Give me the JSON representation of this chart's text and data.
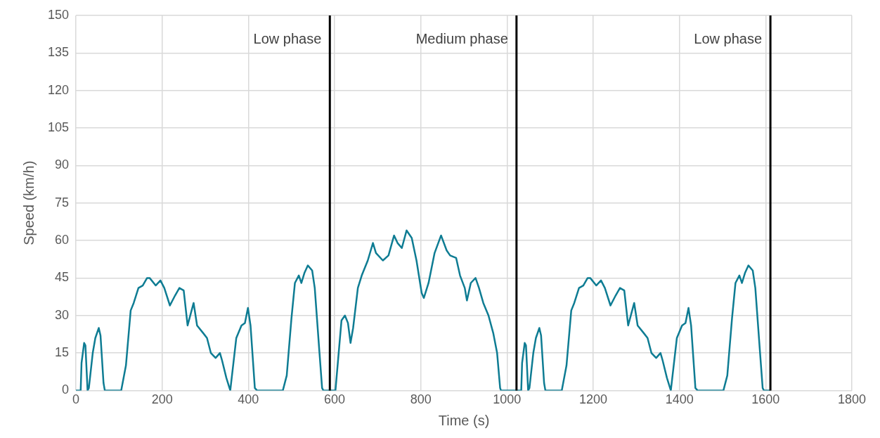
{
  "chart_data": {
    "type": "line",
    "xlabel": "Time (s)",
    "ylabel": "Speed (km/h)",
    "xlim": [
      0,
      1800
    ],
    "xticks": [
      0,
      200,
      400,
      600,
      800,
      1000,
      1200,
      1400,
      1600,
      1800
    ],
    "ylim": [
      0,
      150
    ],
    "yticks": [
      0,
      15,
      30,
      45,
      60,
      75,
      90,
      105,
      120,
      135,
      150
    ],
    "grid": true,
    "legend": false,
    "marker": "none",
    "line_style": "solid",
    "series": [
      {
        "color": "#0e7c93",
        "x": [
          0,
          11,
          13,
          19,
          22,
          27,
          30,
          39,
          45,
          53,
          57,
          64,
          67,
          105,
          116,
          127,
          134,
          145,
          155,
          165,
          171,
          185,
          196,
          205,
          218,
          230,
          240,
          250,
          259,
          273,
          281,
          295,
          304,
          313,
          324,
          334,
          339,
          349,
          358,
          372,
          384,
          392,
          399,
          405,
          415,
          420,
          480,
          489,
          500,
          508,
          517,
          523,
          530,
          538,
          548,
          554,
          565,
          571,
          574,
          589,
          602,
          607,
          616,
          624,
          631,
          637,
          643,
          654,
          663,
          677,
          689,
          696,
          712,
          725,
          738,
          746,
          756,
          767,
          779,
          790,
          802,
          807,
          818,
          832,
          847,
          860,
          868,
          882,
          891,
          902,
          907,
          916,
          927,
          935,
          945,
          957,
          968,
          977,
          984,
          986,
          1022,
          1033,
          1035,
          1041,
          1044,
          1049,
          1052,
          1061,
          1067,
          1075,
          1079,
          1086,
          1089,
          1127,
          1138,
          1149,
          1156,
          1167,
          1177,
          1187,
          1193,
          1207,
          1218,
          1227,
          1240,
          1252,
          1262,
          1272,
          1281,
          1295,
          1303,
          1317,
          1326,
          1335,
          1346,
          1356,
          1361,
          1371,
          1380,
          1394,
          1406,
          1414,
          1421,
          1427,
          1437,
          1442,
          1502,
          1511,
          1522,
          1530,
          1539,
          1545,
          1552,
          1560,
          1570,
          1576,
          1587,
          1593,
          1596,
          1611
        ],
        "values": [
          0,
          0,
          11,
          19,
          18,
          0,
          1,
          15,
          21,
          25,
          22,
          3,
          0,
          0,
          10,
          32,
          35,
          41,
          42,
          45,
          45,
          42,
          44,
          41,
          34,
          38,
          41,
          40,
          26,
          35,
          26,
          23,
          21,
          15,
          13,
          15,
          12,
          5,
          0,
          21,
          26,
          27,
          33,
          26,
          1,
          0,
          0,
          6,
          29,
          43,
          46,
          43,
          47,
          50,
          48,
          41,
          15,
          1,
          0,
          0,
          0,
          10,
          28,
          30,
          27,
          19,
          25,
          41,
          46,
          52,
          59,
          55,
          52,
          54,
          62,
          59,
          57,
          64,
          61,
          52,
          39,
          37,
          43,
          55,
          62,
          56,
          54,
          53,
          46,
          41,
          36,
          43,
          45,
          41,
          35,
          30,
          23,
          15,
          1,
          0,
          0,
          0,
          11,
          19,
          18,
          0,
          1,
          15,
          21,
          25,
          22,
          3,
          0,
          0,
          10,
          32,
          35,
          41,
          42,
          45,
          45,
          42,
          44,
          41,
          34,
          38,
          41,
          40,
          26,
          35,
          26,
          23,
          21,
          15,
          13,
          15,
          12,
          5,
          0,
          21,
          26,
          27,
          33,
          26,
          1,
          0,
          0,
          6,
          29,
          43,
          46,
          43,
          47,
          50,
          48,
          41,
          15,
          1,
          0,
          0
        ]
      }
    ],
    "ref_lines": [
      {
        "axis": "x",
        "value": 589,
        "label": "Low phase",
        "color": "#000000"
      },
      {
        "axis": "x",
        "value": 1022,
        "label": "Medium phase",
        "color": "#000000"
      },
      {
        "axis": "x",
        "value": 1611,
        "label": "Low phase",
        "color": "#000000"
      }
    ]
  }
}
